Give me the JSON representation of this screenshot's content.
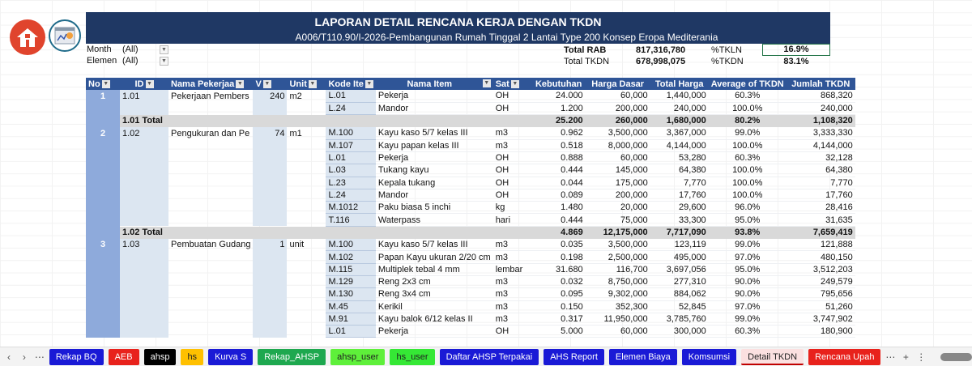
{
  "report": {
    "title": "LAPORAN DETAIL RENCANA KERJA DENGAN TKDN",
    "subtitle": "A006/T110.90/I-2026-Pembangunan Rumah Tinggal 2 Lantai Type 200 Konsep Eropa Mediterania"
  },
  "filters": [
    {
      "label": "Month",
      "value": "(All)"
    },
    {
      "label": "Elemen",
      "value": "(All)"
    }
  ],
  "summary": {
    "total_rab_label": "Total RAB",
    "total_rab": "817,316,780",
    "total_tkdn_label": "Total TKDN",
    "total_tkdn": "678,998,075",
    "tkln_label": "%TKLN",
    "tkln": "16.9%",
    "tkdn_label": "%TKDN",
    "tkdn": "83.1%"
  },
  "columns": [
    "No",
    "ID",
    "Nama Pekerjaa",
    "V",
    "Unit",
    "Kode Ite",
    "Nama Item",
    "Sat",
    "Kebutuhan",
    "Harga Dasar",
    "Total Harga",
    "Average of TKDN",
    "Jumlah TKDN"
  ],
  "groups": [
    {
      "no": "1",
      "id": "1.01",
      "nama": "Pekerjaan Pembers",
      "v": "240",
      "unit": "m2",
      "items": [
        {
          "kode": "L.01",
          "nama": "Pekerja",
          "sat": "OH",
          "keb": "24.000",
          "harga": "60,000",
          "total": "1,440,000",
          "avg": "60.3%",
          "jumlah": "868,320"
        },
        {
          "kode": "L.24",
          "nama": "Mandor",
          "sat": "OH",
          "keb": "1.200",
          "harga": "200,000",
          "total": "240,000",
          "avg": "100.0%",
          "jumlah": "240,000"
        }
      ],
      "total": {
        "label": "1.01 Total",
        "keb": "25.200",
        "harga": "260,000",
        "total": "1,680,000",
        "avg": "80.2%",
        "jumlah": "1,108,320"
      }
    },
    {
      "no": "2",
      "id": "1.02",
      "nama": "Pengukuran dan Pe",
      "v": "74",
      "unit": "m1",
      "items": [
        {
          "kode": "M.100",
          "nama": "Kayu kaso 5/7 kelas III",
          "sat": "m3",
          "keb": "0.962",
          "harga": "3,500,000",
          "total": "3,367,000",
          "avg": "99.0%",
          "jumlah": "3,333,330"
        },
        {
          "kode": "M.107",
          "nama": "Kayu papan kelas III",
          "sat": "m3",
          "keb": "0.518",
          "harga": "8,000,000",
          "total": "4,144,000",
          "avg": "100.0%",
          "jumlah": "4,144,000"
        },
        {
          "kode": "L.01",
          "nama": "Pekerja",
          "sat": "OH",
          "keb": "0.888",
          "harga": "60,000",
          "total": "53,280",
          "avg": "60.3%",
          "jumlah": "32,128"
        },
        {
          "kode": "L.03",
          "nama": "Tukang kayu",
          "sat": "OH",
          "keb": "0.444",
          "harga": "145,000",
          "total": "64,380",
          "avg": "100.0%",
          "jumlah": "64,380"
        },
        {
          "kode": "L.23",
          "nama": "Kepala tukang",
          "sat": "OH",
          "keb": "0.044",
          "harga": "175,000",
          "total": "7,770",
          "avg": "100.0%",
          "jumlah": "7,770"
        },
        {
          "kode": "L.24",
          "nama": "Mandor",
          "sat": "OH",
          "keb": "0.089",
          "harga": "200,000",
          "total": "17,760",
          "avg": "100.0%",
          "jumlah": "17,760"
        },
        {
          "kode": "M.1012",
          "nama": "Paku biasa 5 inchi",
          "sat": "kg",
          "keb": "1.480",
          "harga": "20,000",
          "total": "29,600",
          "avg": "96.0%",
          "jumlah": "28,416"
        },
        {
          "kode": "T.116",
          "nama": "Waterpass",
          "sat": "hari",
          "keb": "0.444",
          "harga": "75,000",
          "total": "33,300",
          "avg": "95.0%",
          "jumlah": "31,635"
        }
      ],
      "total": {
        "label": "1.02 Total",
        "keb": "4.869",
        "harga": "12,175,000",
        "total": "7,717,090",
        "avg": "93.8%",
        "jumlah": "7,659,419"
      }
    },
    {
      "no": "3",
      "id": "1.03",
      "nama": "Pembuatan Gudang",
      "v": "1",
      "unit": "unit",
      "items": [
        {
          "kode": "M.100",
          "nama": "Kayu kaso 5/7 kelas III",
          "sat": "m3",
          "keb": "0.035",
          "harga": "3,500,000",
          "total": "123,119",
          "avg": "99.0%",
          "jumlah": "121,888"
        },
        {
          "kode": "M.102",
          "nama": "Papan Kayu ukuran 2/20 cm",
          "sat": "m3",
          "keb": "0.198",
          "harga": "2,500,000",
          "total": "495,000",
          "avg": "97.0%",
          "jumlah": "480,150"
        },
        {
          "kode": "M.115",
          "nama": "Multiplek tebal 4 mm",
          "sat": "lembar",
          "keb": "31.680",
          "harga": "116,700",
          "total": "3,697,056",
          "avg": "95.0%",
          "jumlah": "3,512,203"
        },
        {
          "kode": "M.129",
          "nama": "Reng 2x3 cm",
          "sat": "m3",
          "keb": "0.032",
          "harga": "8,750,000",
          "total": "277,310",
          "avg": "90.0%",
          "jumlah": "249,579"
        },
        {
          "kode": "M.130",
          "nama": "Reng 3x4 cm",
          "sat": "m3",
          "keb": "0.095",
          "harga": "9,302,000",
          "total": "884,062",
          "avg": "90.0%",
          "jumlah": "795,656"
        },
        {
          "kode": "M.45",
          "nama": "Kerikil",
          "sat": "m3",
          "keb": "0.150",
          "harga": "352,300",
          "total": "52,845",
          "avg": "97.0%",
          "jumlah": "51,260"
        },
        {
          "kode": "M.91",
          "nama": "Kayu balok 6/12 kelas II",
          "sat": "m3",
          "keb": "0.317",
          "harga": "11,950,000",
          "total": "3,785,760",
          "avg": "99.0%",
          "jumlah": "3,747,902"
        },
        {
          "kode": "L.01",
          "nama": "Pekerja",
          "sat": "OH",
          "keb": "5.000",
          "harga": "60,000",
          "total": "300,000",
          "avg": "60.3%",
          "jumlah": "180,900"
        }
      ]
    }
  ],
  "sheet_tabs": [
    {
      "label": "Rekap BQ",
      "bg": "#1a1ad6",
      "fg": "#ffffff"
    },
    {
      "label": "AEB",
      "bg": "#e8221c",
      "fg": "#ffffff"
    },
    {
      "label": "ahsp",
      "bg": "#000000",
      "fg": "#ffffff"
    },
    {
      "label": "hs",
      "bg": "#ffc000",
      "fg": "#222222"
    },
    {
      "label": "Kurva S",
      "bg": "#1a1ad6",
      "fg": "#ffffff"
    },
    {
      "label": "Rekap_AHSP",
      "bg": "#1ea84f",
      "fg": "#ffffff"
    },
    {
      "label": "ahsp_user",
      "bg": "#5ef03a",
      "fg": "#222222"
    },
    {
      "label": "hs_user",
      "bg": "#35e835",
      "fg": "#222222"
    },
    {
      "label": "Daftar AHSP Terpakai",
      "bg": "#1a1ad6",
      "fg": "#ffffff"
    },
    {
      "label": "AHS Report",
      "bg": "#1a1ad6",
      "fg": "#ffffff"
    },
    {
      "label": "Elemen Biaya",
      "bg": "#1a1ad6",
      "fg": "#ffffff"
    },
    {
      "label": "Komsumsi",
      "bg": "#1a1ad6",
      "fg": "#ffffff"
    },
    {
      "label": "Detail TKDN",
      "bg": "#fbe0e0",
      "fg": "#222222",
      "active": true
    },
    {
      "label": "Rencana Upah",
      "bg": "#e8221c",
      "fg": "#ffffff"
    }
  ]
}
